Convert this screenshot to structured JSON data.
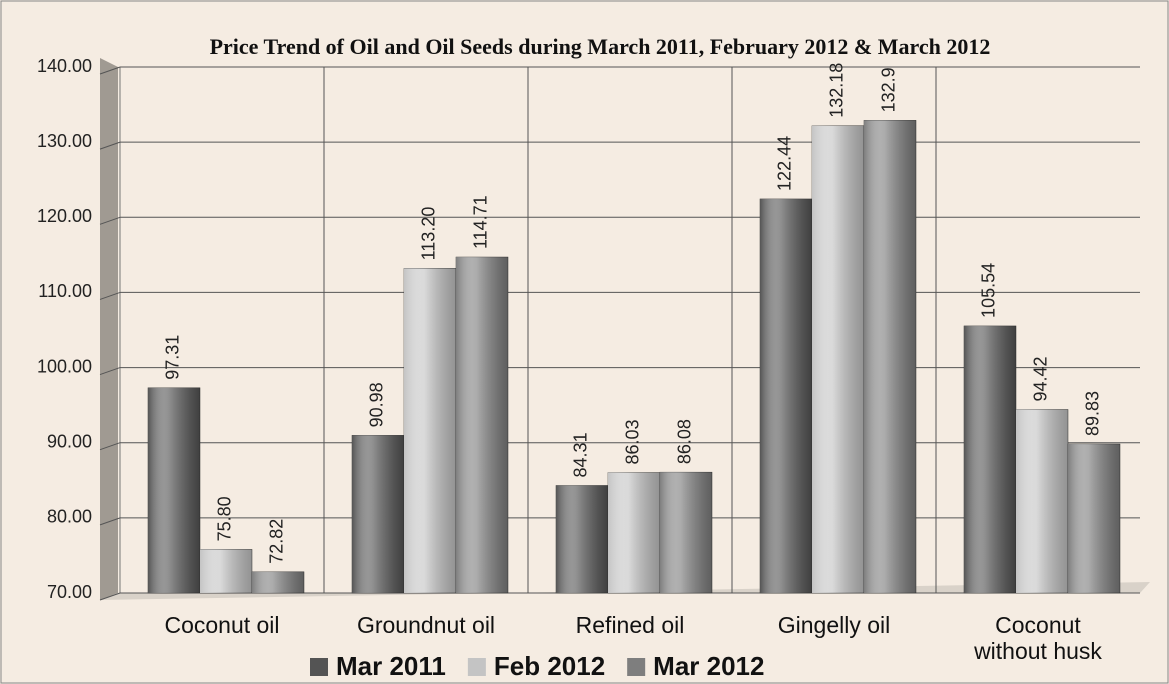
{
  "chart_data": {
    "type": "bar",
    "title": "Price Trend of Oil and Oil Seeds during March 2011, February 2012 & March 2012",
    "categories": [
      "Coconut oil",
      "Groundnut oil",
      "Refined oil",
      "Gingelly oil",
      "Coconut without husk"
    ],
    "series": [
      {
        "name": "Mar 2011",
        "color": "#545454",
        "values": [
          97.31,
          90.98,
          84.31,
          122.44,
          105.54
        ]
      },
      {
        "name": "Feb 2012",
        "color": "#c4c4c4",
        "values": [
          75.8,
          113.2,
          86.03,
          132.18,
          94.42
        ],
        "value_labels": [
          "75.80",
          "113.20",
          "86.03",
          "132.18",
          "94.42"
        ]
      },
      {
        "name": "Mar 2012",
        "color": "#7e7e7e",
        "values": [
          72.82,
          114.71,
          86.08,
          132.9,
          89.83
        ]
      }
    ],
    "ylim": [
      70,
      140
    ],
    "yticks": [
      {
        "value": 70,
        "label": "70.00"
      },
      {
        "value": 80,
        "label": "80.00"
      },
      {
        "value": 90,
        "label": "90.00"
      },
      {
        "value": 100,
        "label": "100.00"
      },
      {
        "value": 110,
        "label": "110.00"
      },
      {
        "value": 120,
        "label": "120.00"
      },
      {
        "value": 130,
        "label": "130.00"
      },
      {
        "value": 140,
        "label": "140.00"
      }
    ],
    "grid": true,
    "legend": "bottom"
  }
}
